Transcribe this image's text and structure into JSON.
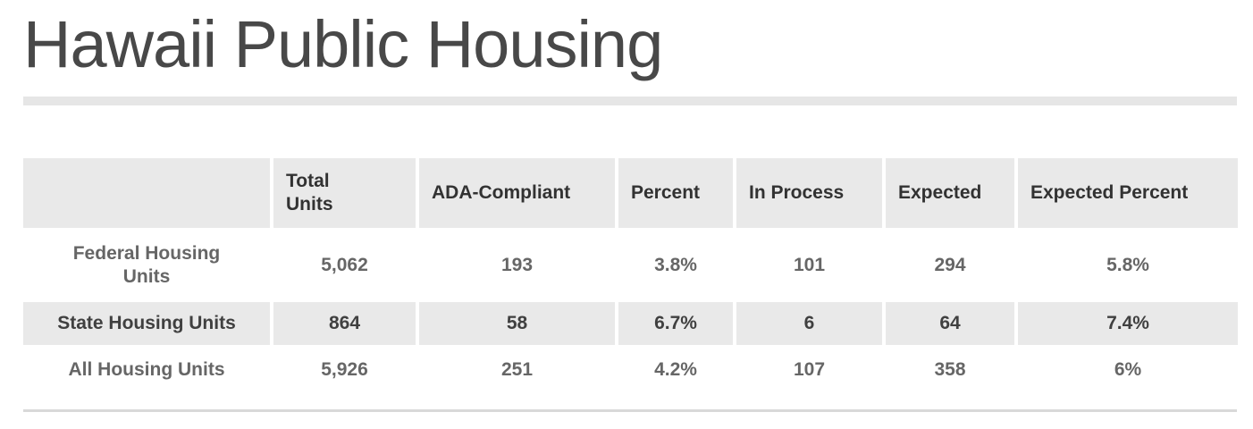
{
  "page": {
    "title": "Hawaii Public Housing"
  },
  "table": {
    "columns": [
      "",
      "Total Units",
      "ADA-Compliant",
      "Percent",
      "In Process",
      "Expected",
      "Expected Percent"
    ],
    "rows": [
      {
        "label": "Federal Housing Units",
        "values": [
          "5,062",
          "193",
          "3.8%",
          "101",
          "294",
          "5.8%"
        ],
        "striped": false
      },
      {
        "label": "State Housing Units",
        "values": [
          "864",
          "58",
          "6.7%",
          "6",
          "64",
          "7.4%"
        ],
        "striped": true
      },
      {
        "label": "All Housing Units",
        "values": [
          "5,926",
          "251",
          "4.2%",
          "107",
          "358",
          "6%"
        ],
        "striped": false
      }
    ]
  },
  "colors": {
    "title": "#484848",
    "header_text": "#323232",
    "row_text": "#666666",
    "stripe_text": "#404040",
    "cell_background": "#e9e9e9",
    "top_divider": "#e6e6e6",
    "bottom_divider": "#d9d9d9"
  }
}
